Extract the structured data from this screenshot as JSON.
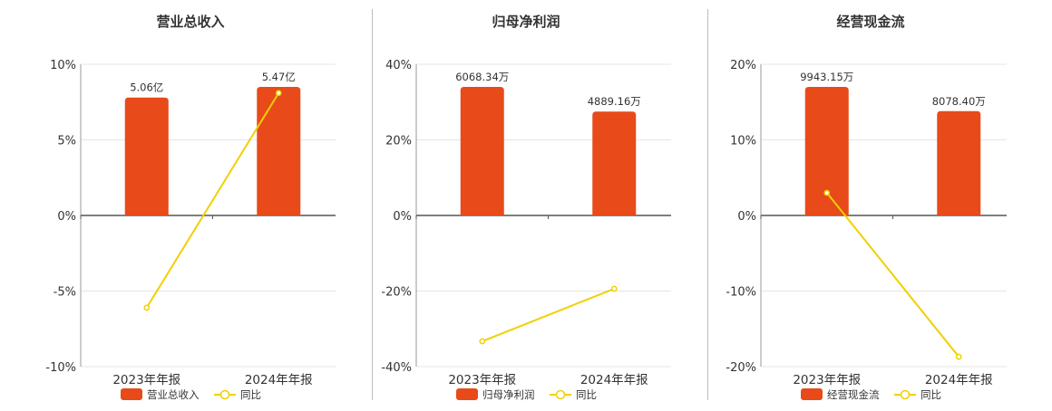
{
  "colors": {
    "bar": "#e84a1a",
    "line": "#f0d000",
    "axis": "#555555",
    "grid": "#e5e5e5",
    "text": "#333333"
  },
  "legend_line_label": "同比",
  "chart_data": [
    {
      "type": "bar",
      "title": "营业总收入",
      "categories": [
        "2023年年报",
        "2024年年报"
      ],
      "bar_series": {
        "name": "营业总收入",
        "values": [
          5.06,
          5.47
        ],
        "labels": [
          "5.06亿",
          "5.47亿"
        ]
      },
      "line_series": {
        "name": "同比",
        "values": [
          -6.1,
          8.1
        ]
      },
      "y_ticks": [
        "10%",
        "5%",
        "0%",
        "-5%",
        "-10%"
      ],
      "ylim": [
        -10,
        10
      ],
      "bar_pct_values": [
        7.8,
        8.5
      ]
    },
    {
      "type": "bar",
      "title": "归母净利润",
      "categories": [
        "2023年年报",
        "2024年年报"
      ],
      "bar_series": {
        "name": "归母净利润",
        "values": [
          6068.34,
          4889.16
        ],
        "labels": [
          "6068.34万",
          "4889.16万"
        ]
      },
      "line_series": {
        "name": "同比",
        "values": [
          -33.3,
          -19.4
        ]
      },
      "y_ticks": [
        "40%",
        "20%",
        "0%",
        "-20%",
        "-40%"
      ],
      "ylim": [
        -40,
        40
      ],
      "bar_pct_values": [
        34,
        27.5
      ]
    },
    {
      "type": "bar",
      "title": "经营现金流",
      "categories": [
        "2023年年报",
        "2024年年报"
      ],
      "bar_series": {
        "name": "经营现金流",
        "values": [
          9943.15,
          8078.4
        ],
        "labels": [
          "9943.15万",
          "8078.40万"
        ]
      },
      "line_series": {
        "name": "同比",
        "values": [
          3.0,
          -18.7
        ]
      },
      "y_ticks": [
        "20%",
        "10%",
        "0%",
        "-10%",
        "-20%"
      ],
      "ylim": [
        -20,
        20
      ],
      "bar_pct_values": [
        17,
        13.8
      ]
    }
  ]
}
